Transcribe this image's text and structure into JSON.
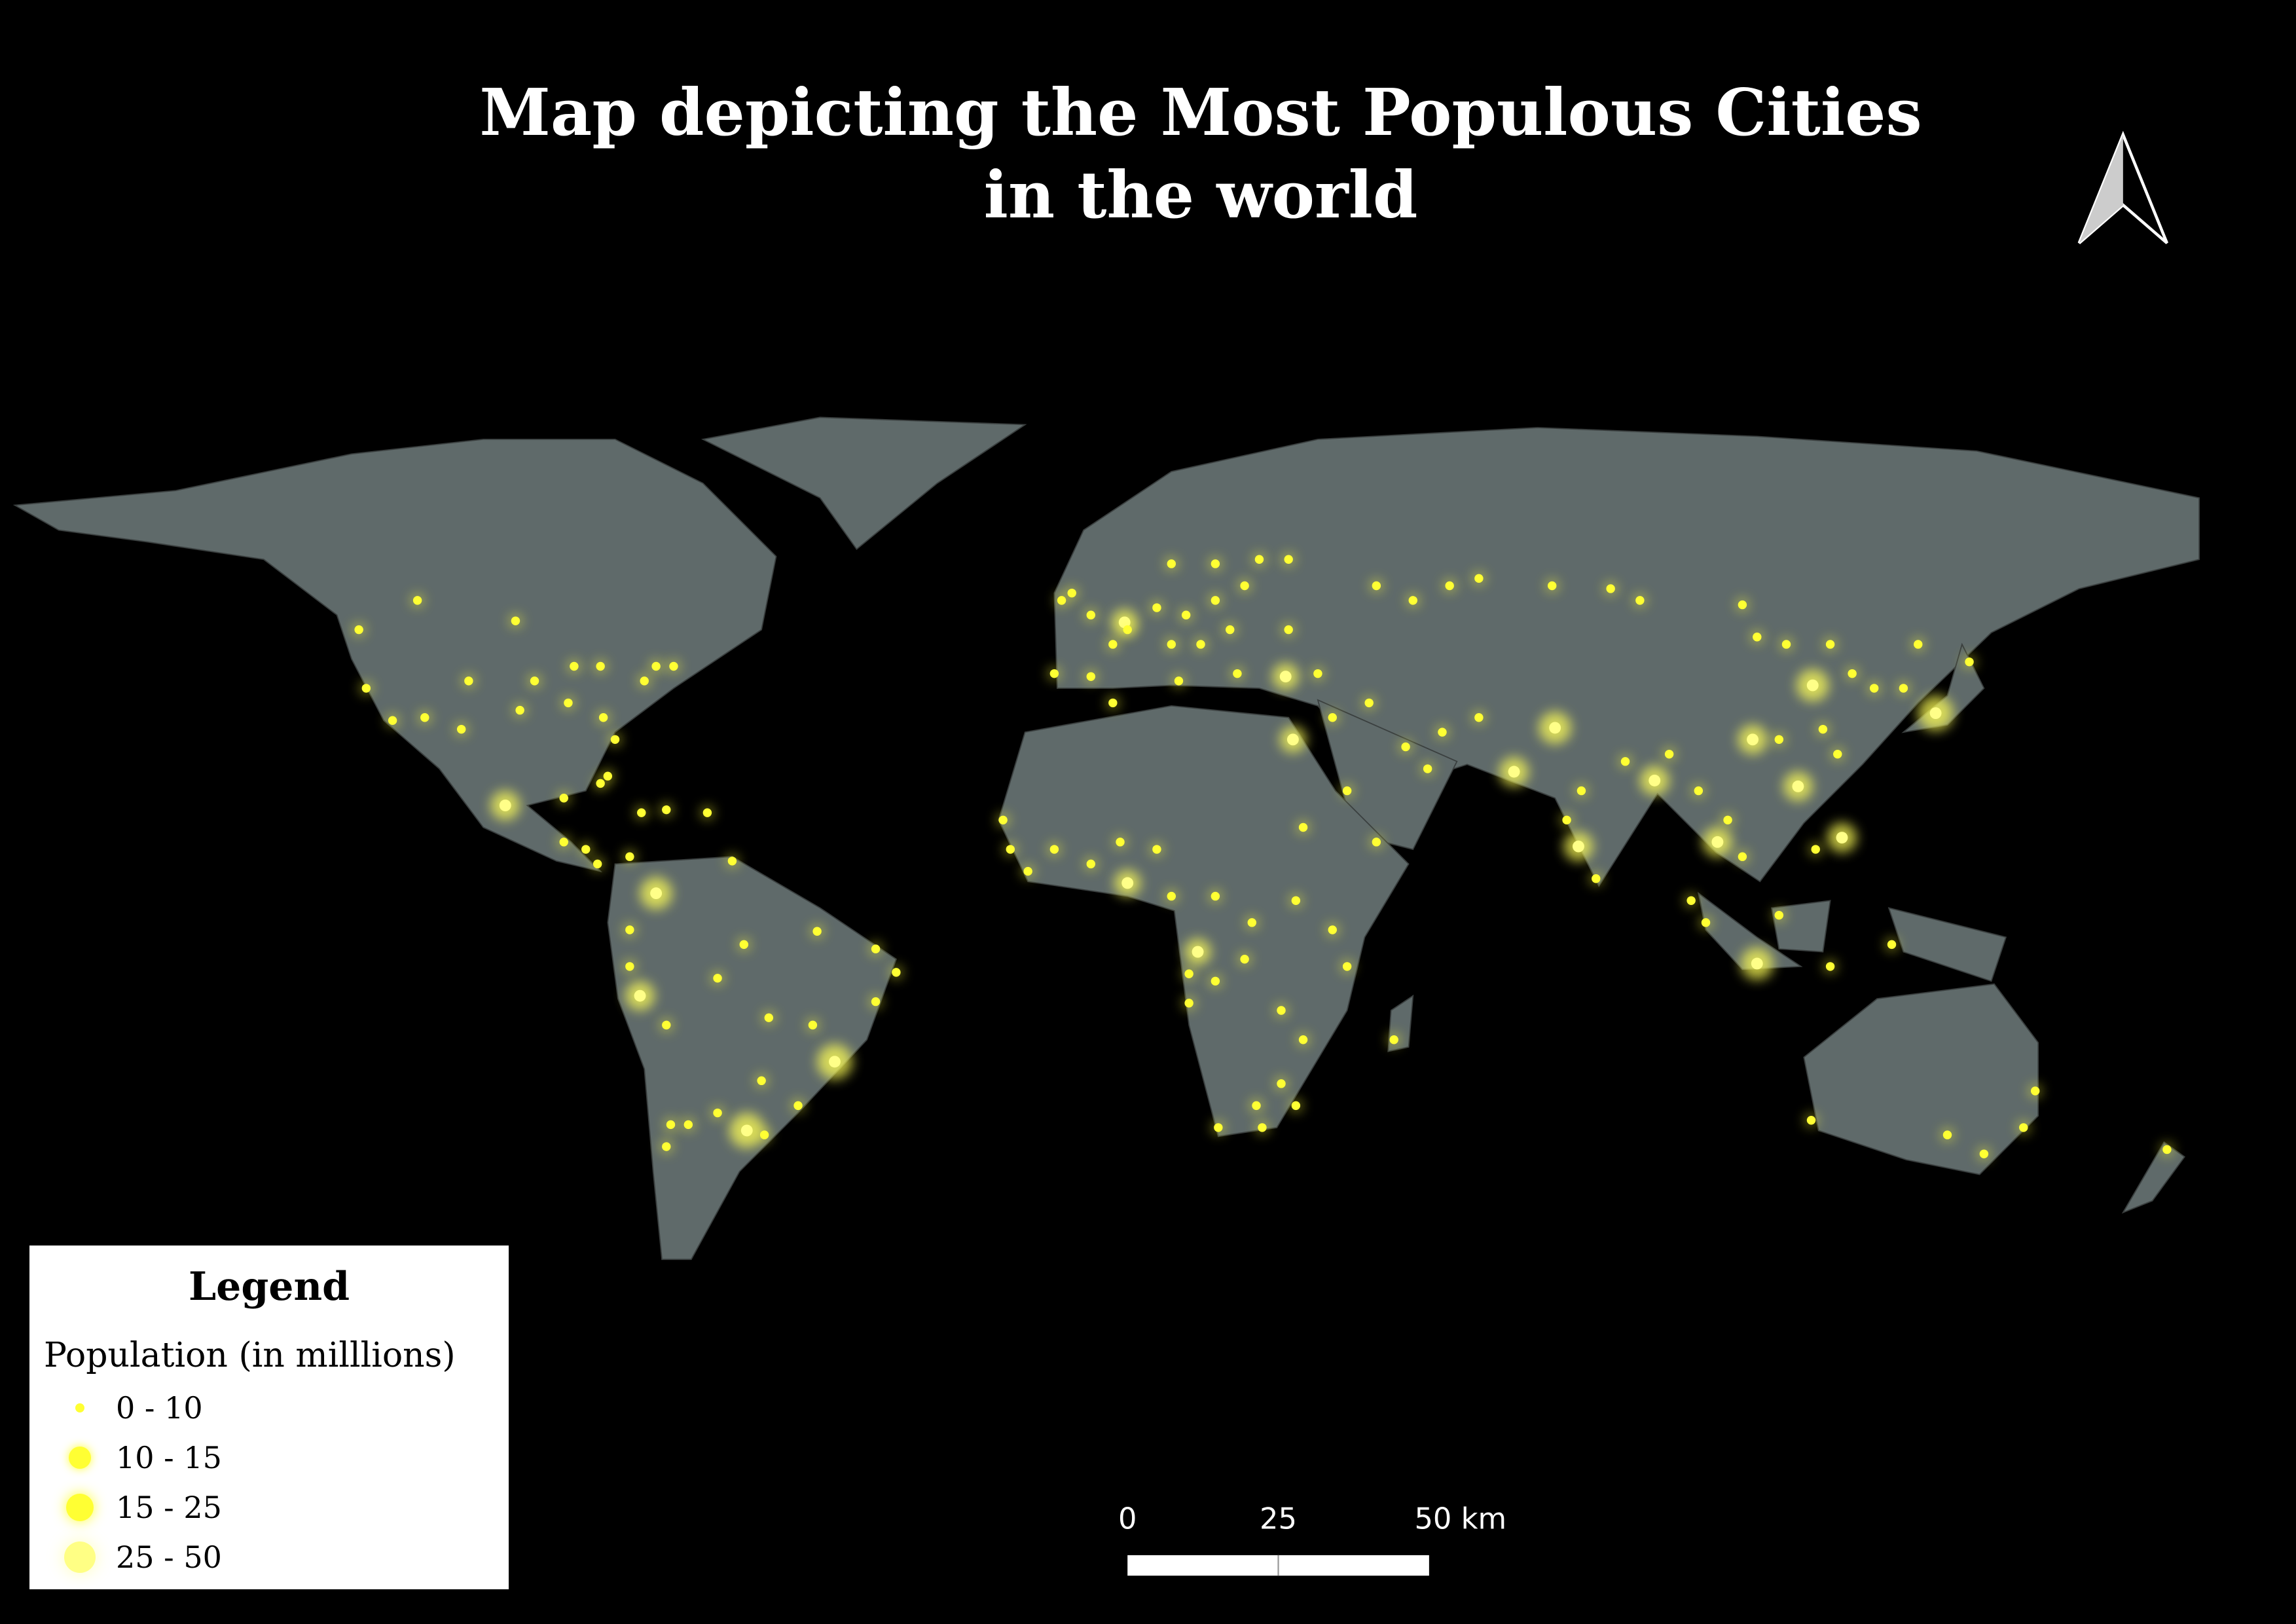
{
  "title": "Map depicting the Most Populous Cities in the world",
  "legend": {
    "title": "Legend",
    "subtitle": "Population (in milllions)",
    "items": [
      "0 - 10",
      "10 - 15",
      "15 - 25",
      "25 - 50"
    ]
  },
  "scale_bar": {
    "labels": [
      "0",
      "25",
      "50 km"
    ]
  }
}
